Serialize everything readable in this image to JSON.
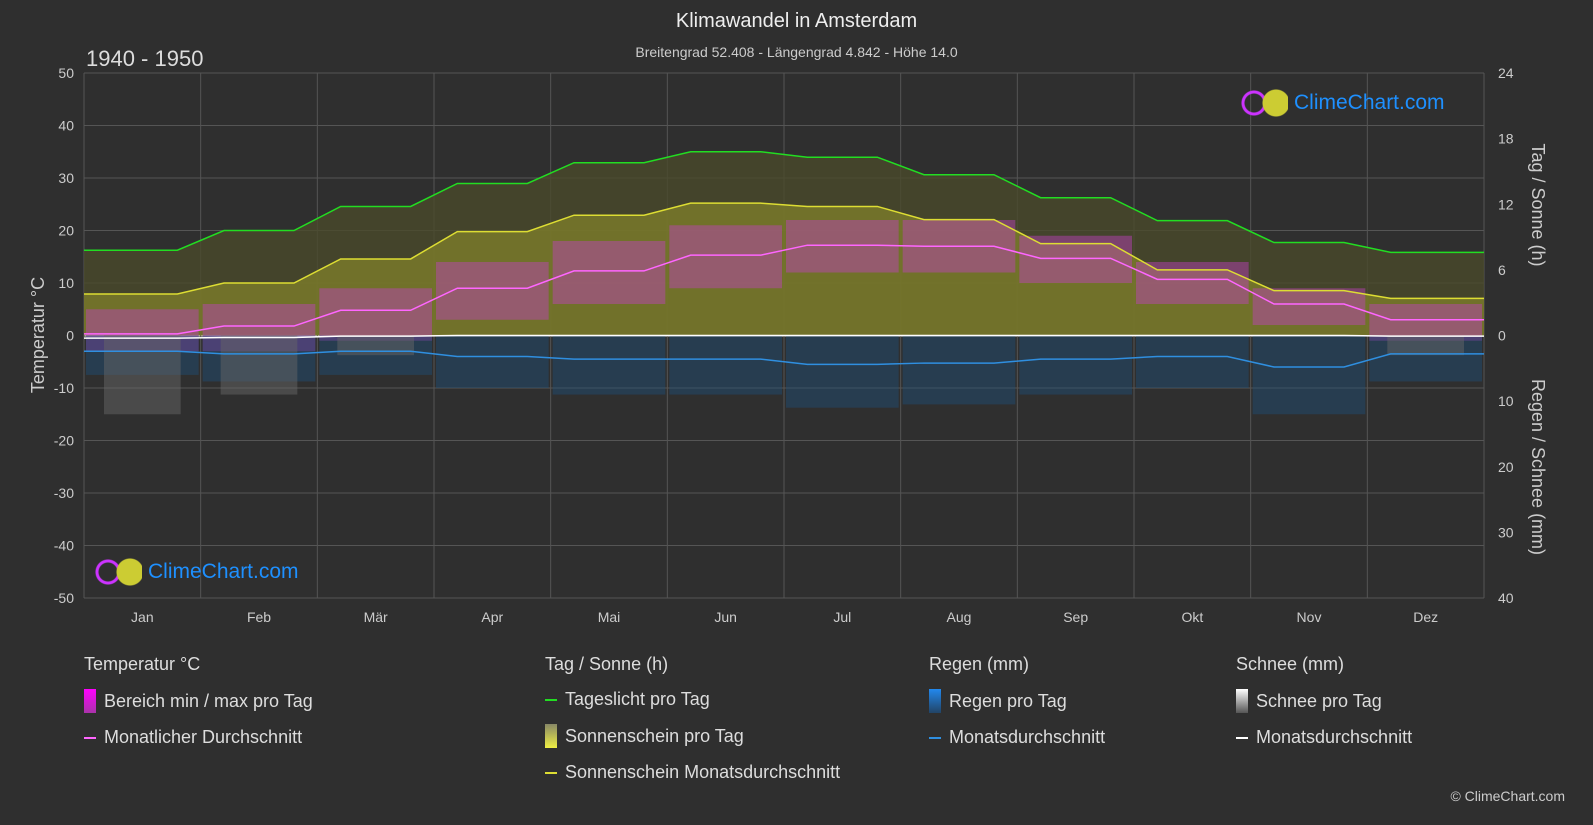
{
  "header": {
    "title": "Klimawandel in Amsterdam",
    "subtitle": "Breitengrad 52.408 - Längengrad 4.842 - Höhe 14.0",
    "period": "1940 - 1950"
  },
  "logo_text": "ClimeChart.com",
  "copyright": "© ClimeChart.com",
  "chart_data": {
    "type": "line",
    "categories": [
      "Jan",
      "Feb",
      "Mär",
      "Apr",
      "Mai",
      "Jun",
      "Jul",
      "Aug",
      "Sep",
      "Okt",
      "Nov",
      "Dez"
    ],
    "y_left": {
      "label": "Temperatur °C",
      "range": [
        -50,
        50
      ],
      "ticks": [
        50,
        40,
        30,
        20,
        10,
        0,
        -10,
        -20,
        -30,
        -40,
        -50
      ]
    },
    "y_right_top": {
      "label": "Tag / Sonne (h)",
      "range": [
        0,
        24
      ],
      "ticks": [
        24,
        18,
        12,
        6,
        0
      ]
    },
    "y_right_bottom": {
      "label": "Regen / Schnee (mm)",
      "range": [
        0,
        40
      ],
      "ticks": [
        10,
        20,
        30,
        40
      ]
    },
    "grid": true,
    "series": [
      {
        "name": "Tageslicht pro Tag",
        "axis": "sun_h",
        "color": "#22dd22",
        "values": [
          7.8,
          9.6,
          11.8,
          13.9,
          15.8,
          16.8,
          16.3,
          14.7,
          12.6,
          10.5,
          8.5,
          7.6
        ]
      },
      {
        "name": "Sonnenschein Monatsdurchschnitt",
        "axis": "sun_h",
        "color": "#dddd33",
        "values": [
          3.8,
          4.8,
          7.0,
          9.5,
          11.0,
          12.1,
          11.8,
          10.6,
          8.4,
          6.0,
          4.1,
          3.4
        ]
      },
      {
        "name": "Monatlicher Durchschnitt",
        "axis": "temp_c",
        "color": "#ff66ff",
        "values": [
          0.3,
          1.8,
          4.8,
          9.0,
          12.3,
          15.3,
          17.2,
          17.0,
          14.7,
          10.7,
          6.0,
          3.0
        ]
      },
      {
        "name": "Regen Monatsdurchschnitt",
        "axis": "rain_mm",
        "color": "#2f8fe0",
        "values": [
          2.4,
          2.8,
          2.4,
          3.2,
          3.6,
          3.6,
          4.4,
          4.2,
          3.6,
          3.2,
          4.8,
          2.8
        ]
      },
      {
        "name": "Schnee Monatsdurchschnitt",
        "axis": "rain_mm",
        "color": "#ffffff",
        "values": [
          0.4,
          0.3,
          0.1,
          0,
          0,
          0,
          0,
          0,
          0,
          0,
          0,
          0.1
        ]
      }
    ],
    "temp_range": {
      "name": "Bereich min / max pro Tag",
      "min": [
        -3,
        -3,
        -1,
        3,
        6,
        9,
        12,
        12,
        10,
        6,
        2,
        -1
      ],
      "max": [
        5,
        6,
        9,
        14,
        18,
        21,
        22,
        22,
        19,
        14,
        9,
        6
      ]
    }
  },
  "legend": {
    "groups": [
      {
        "title": "Temperatur °C",
        "items": [
          "Bereich min / max pro Tag",
          "Monatlicher Durchschnitt"
        ]
      },
      {
        "title": "Tag / Sonne (h)",
        "items": [
          "Tageslicht pro Tag",
          "Sonnenschein pro Tag",
          "Sonnenschein Monatsdurchschnitt"
        ]
      },
      {
        "title": "Regen (mm)",
        "items": [
          "Regen pro Tag",
          "Monatsdurchschnitt"
        ]
      },
      {
        "title": "Schnee (mm)",
        "items": [
          "Schnee pro Tag",
          "Monatsdurchschnitt"
        ]
      }
    ]
  }
}
